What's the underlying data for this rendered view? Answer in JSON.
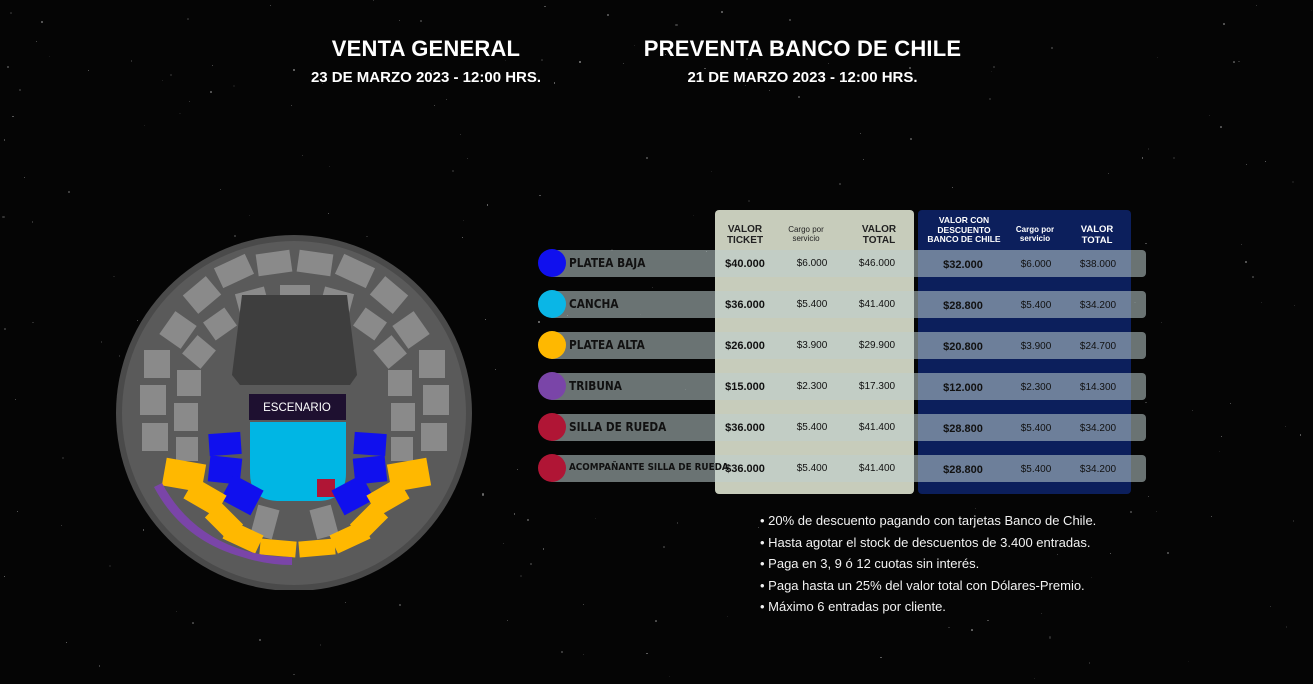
{
  "sales": {
    "general": {
      "title": "VENTA GENERAL",
      "date": "23 DE MARZO 2023 - 12:00 HRS."
    },
    "presale": {
      "title": "PREVENTA BANCO DE CHILE",
      "date": "21 DE MARZO 2023 - 12:00 HRS."
    }
  },
  "map": {
    "stage_label": "ESCENARIO"
  },
  "table": {
    "headers_general": [
      "VALOR TICKET",
      "Cargo por servicio",
      "VALOR TOTAL"
    ],
    "headers_presale": [
      "VALOR CON DESCUENTO BANCO DE CHILE",
      "Cargo por servicio",
      "VALOR TOTAL"
    ],
    "rows": [
      {
        "zone": "PLATEA BAJA",
        "color": "#1010ee",
        "ticket": "$40.000",
        "fee": "$6.000",
        "total": "$46.000",
        "p_ticket": "$32.000",
        "p_fee": "$6.000",
        "p_total": "$38.000"
      },
      {
        "zone": "CANCHA",
        "color": "#0ab6e6",
        "ticket": "$36.000",
        "fee": "$5.400",
        "total": "$41.400",
        "p_ticket": "$28.800",
        "p_fee": "$5.400",
        "p_total": "$34.200"
      },
      {
        "zone": "PLATEA ALTA",
        "color": "#ffb800",
        "ticket": "$26.000",
        "fee": "$3.900",
        "total": "$29.900",
        "p_ticket": "$20.800",
        "p_fee": "$3.900",
        "p_total": "$24.700"
      },
      {
        "zone": "TRIBUNA",
        "color": "#7a45a8",
        "ticket": "$15.000",
        "fee": "$2.300",
        "total": "$17.300",
        "p_ticket": "$12.000",
        "p_fee": "$2.300",
        "p_total": "$14.300"
      },
      {
        "zone": "SILLA DE RUEDA",
        "color": "#b01535",
        "ticket": "$36.000",
        "fee": "$5.400",
        "total": "$41.400",
        "p_ticket": "$28.800",
        "p_fee": "$5.400",
        "p_total": "$34.200"
      },
      {
        "zone": "ACOMPAÑANTE SILLA DE RUEDA",
        "color": "#b01535",
        "ticket": "$36.000",
        "fee": "$5.400",
        "total": "$41.400",
        "p_ticket": "$28.800",
        "p_fee": "$5.400",
        "p_total": "$34.200"
      }
    ]
  },
  "notes": [
    "• 20% de descuento pagando con tarjetas Banco de Chile.",
    "• Hasta agotar el stock de descuentos de 3.400 entradas.",
    "• Paga en 3, 9 ó 12 cuotas sin interés.",
    "• Paga hasta un 25% del valor total con Dólares-Premio.",
    "• Máximo 6 entradas por cliente."
  ]
}
